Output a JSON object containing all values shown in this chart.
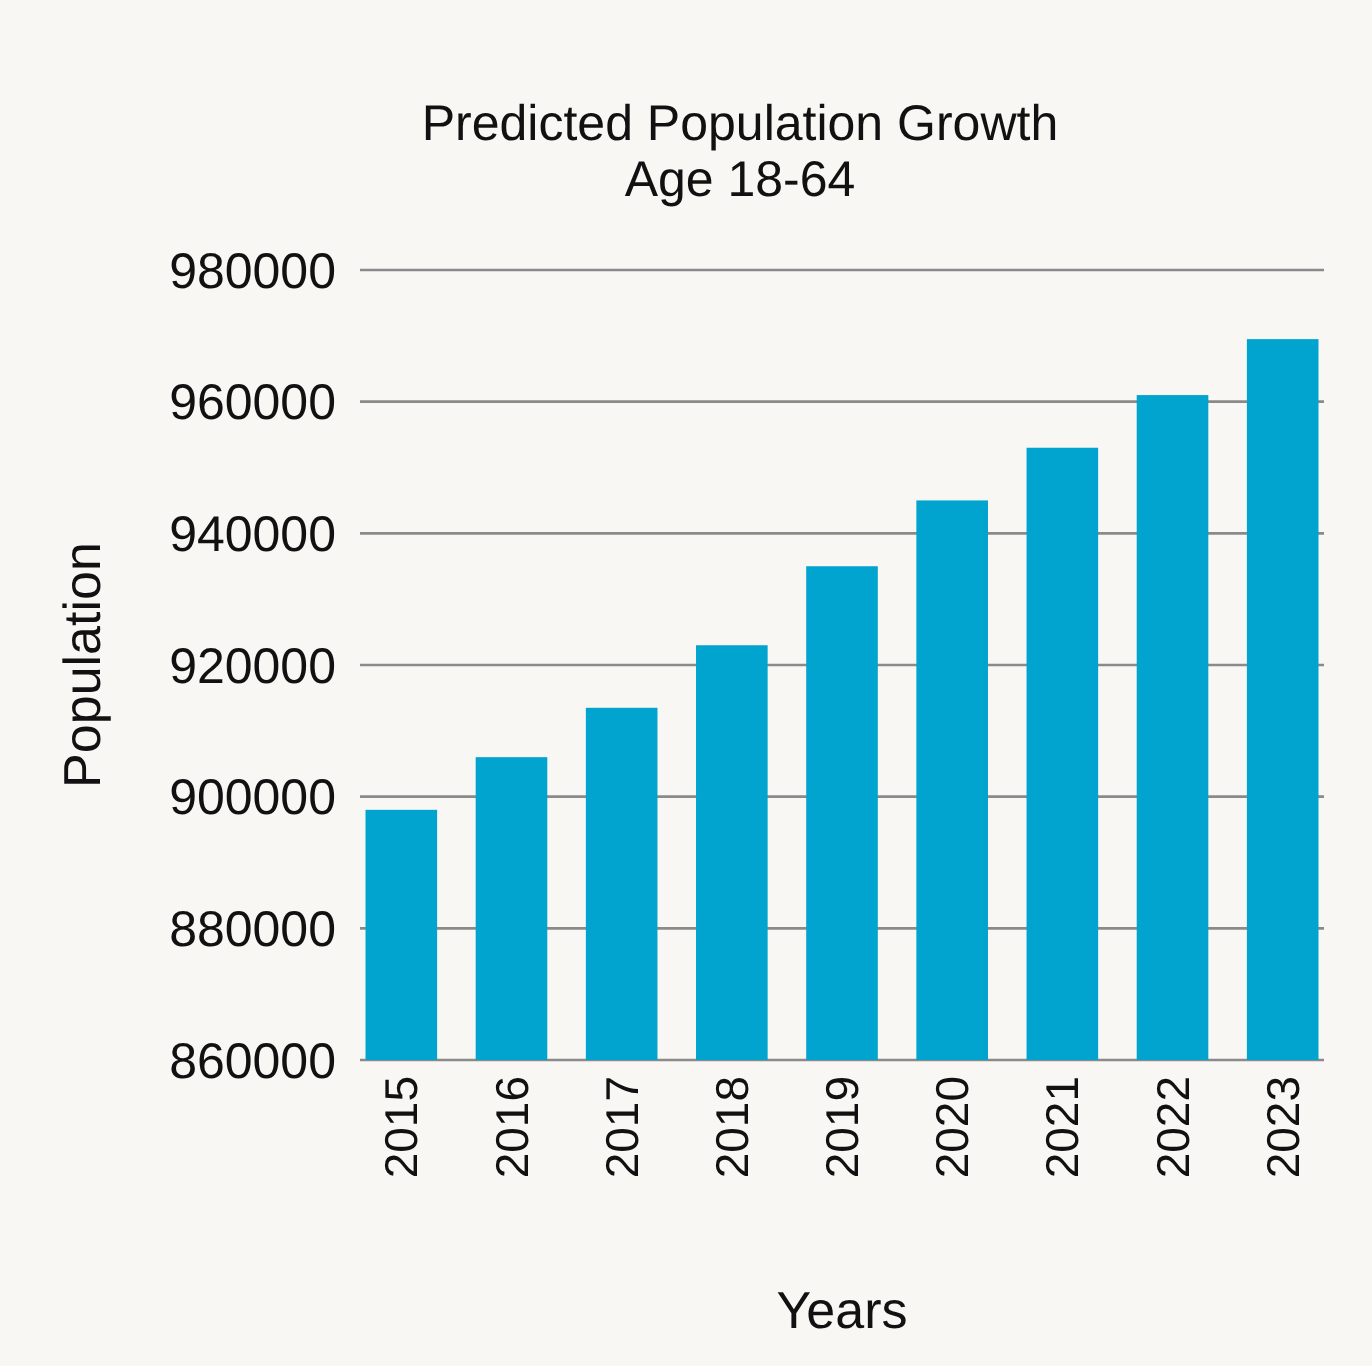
{
  "chart_data": {
    "type": "bar",
    "title": "Predicted Population Growth\nAge 18-64",
    "xlabel": "Years",
    "ylabel": "Population",
    "categories": [
      "2015",
      "2016",
      "2017",
      "2018",
      "2019",
      "2020",
      "2021",
      "2022",
      "2023"
    ],
    "values": [
      898000,
      906000,
      913500,
      923000,
      935000,
      945000,
      953000,
      961000,
      969500
    ],
    "color": "#01a4cf",
    "ylim": [
      860000,
      980000
    ],
    "yticks": [
      860000,
      880000,
      900000,
      920000,
      940000,
      960000,
      980000
    ],
    "grid": "y"
  }
}
